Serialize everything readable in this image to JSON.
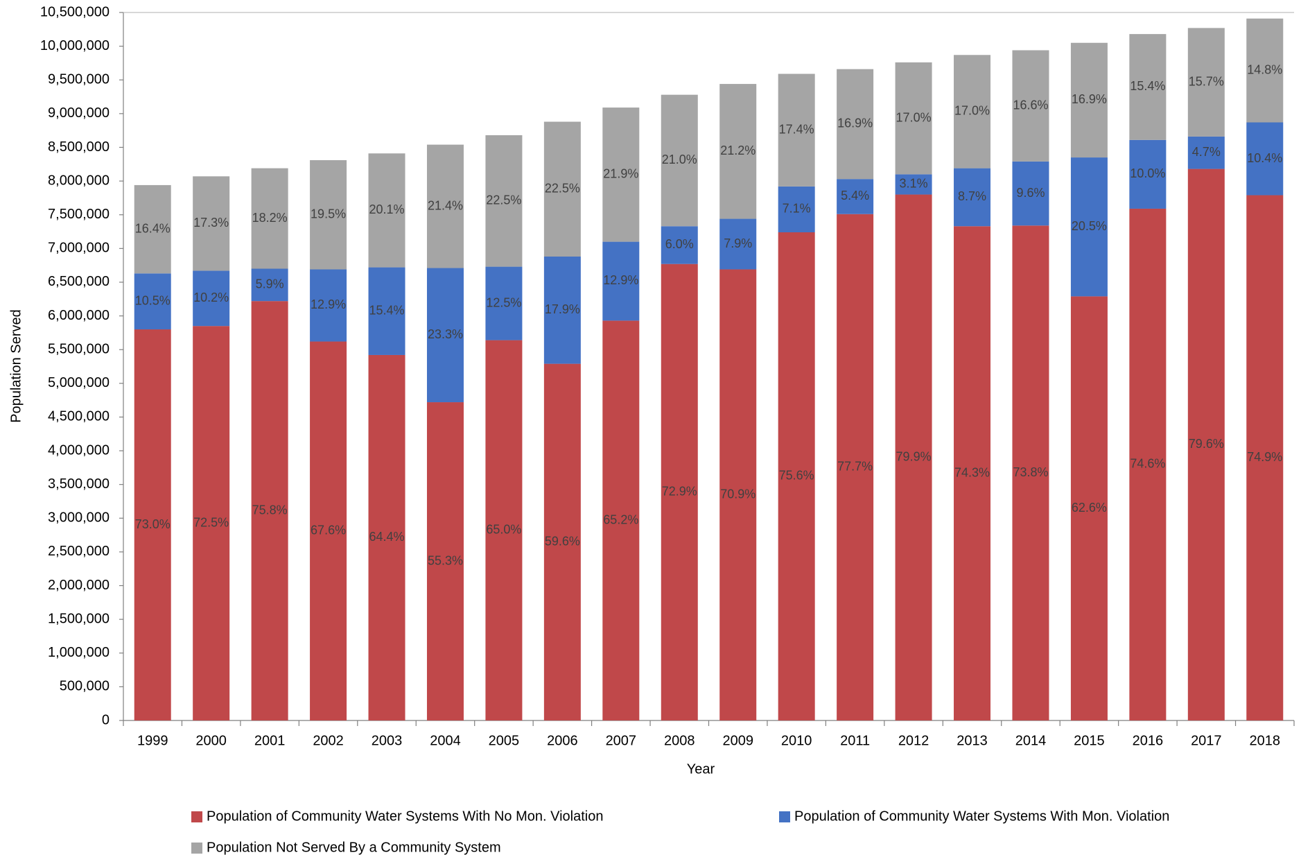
{
  "chart_data": {
    "type": "stacked_bar",
    "x_label": "Year",
    "y_label": "Population Served",
    "categories": [
      "1999",
      "2000",
      "2001",
      "2002",
      "2003",
      "2004",
      "2005",
      "2006",
      "2007",
      "2008",
      "2009",
      "2010",
      "2011",
      "2012",
      "2013",
      "2014",
      "2015",
      "2016",
      "2017",
      "2018"
    ],
    "series": [
      {
        "name": "Population of Community Water Systems With No Mon. Violation",
        "color": "#c0484a",
        "values": [
          5800000,
          5850000,
          6220000,
          5620000,
          5420000,
          4720000,
          5640000,
          5290000,
          5930000,
          6770000,
          6690000,
          7240000,
          7510000,
          7800000,
          7330000,
          7340000,
          6290000,
          7590000,
          8180000,
          7790000
        ],
        "percent_labels": [
          "73.0%",
          "72.5%",
          "75.8%",
          "67.6%",
          "64.4%",
          "55.3%",
          "65.0%",
          "59.6%",
          "65.2%",
          "72.9%",
          "70.9%",
          "75.6%",
          "77.7%",
          "79.9%",
          "74.3%",
          "73.8%",
          "62.6%",
          "74.6%",
          "79.6%",
          "74.9%"
        ]
      },
      {
        "name": "Population of Community Water Systems With Mon. Violation",
        "color": "#4472c4",
        "values": [
          830000,
          820000,
          480000,
          1070000,
          1300000,
          1990000,
          1090000,
          1590000,
          1170000,
          560000,
          750000,
          680000,
          520000,
          300000,
          860000,
          950000,
          2060000,
          1020000,
          480000,
          1080000
        ],
        "percent_labels": [
          "10.5%",
          "10.2%",
          "5.9%",
          "12.9%",
          "15.4%",
          "23.3%",
          "12.5%",
          "17.9%",
          "12.9%",
          "6.0%",
          "7.9%",
          "7.1%",
          "5.4%",
          "3.1%",
          "8.7%",
          "9.6%",
          "20.5%",
          "10.0%",
          "4.7%",
          "10.4%"
        ]
      },
      {
        "name": "Population Not Served By a Community System",
        "color": "#a5a5a5",
        "values": [
          1310000,
          1400000,
          1490000,
          1620000,
          1690000,
          1830000,
          1950000,
          2000000,
          1990000,
          1950000,
          2000000,
          1670000,
          1630000,
          1660000,
          1680000,
          1650000,
          1700000,
          1570000,
          1610000,
          1540000
        ],
        "percent_labels": [
          "16.4%",
          "17.3%",
          "18.2%",
          "19.5%",
          "20.1%",
          "21.4%",
          "22.5%",
          "22.5%",
          "21.9%",
          "21.0%",
          "21.2%",
          "17.4%",
          "16.9%",
          "17.0%",
          "17.0%",
          "16.6%",
          "16.9%",
          "15.4%",
          "15.7%",
          "14.8%"
        ]
      }
    ],
    "ylim": [
      0,
      10500000
    ],
    "yticks": [
      0,
      {
        "value": 500000,
        "label": "500,000"
      },
      {
        "value": 1000000,
        "label": "1,000,000"
      },
      {
        "value": 1500000,
        "label": "1,500,000"
      },
      {
        "value": 2000000,
        "label": "2,000,000"
      },
      {
        "value": 2500000,
        "label": "2,500,000"
      },
      {
        "value": 3000000,
        "label": "3,000,000"
      },
      {
        "value": 3500000,
        "label": "3,500,000"
      },
      {
        "value": 4000000,
        "label": "4,000,000"
      },
      {
        "value": 4500000,
        "label": "4,500,000"
      },
      {
        "value": 5000000,
        "label": "5,000,000"
      },
      {
        "value": 5500000,
        "label": "5,500,000"
      },
      {
        "value": 6000000,
        "label": "6,000,000"
      },
      {
        "value": 6500000,
        "label": "6,500,000"
      },
      {
        "value": 7000000,
        "label": "7,000,000"
      },
      {
        "value": 7500000,
        "label": "7,500,000"
      },
      {
        "value": 8000000,
        "label": "8,000,000"
      },
      {
        "value": 8500000,
        "label": "8,500,000"
      },
      {
        "value": 9000000,
        "label": "9,000,000"
      },
      {
        "value": 9500000,
        "label": "9,500,000"
      },
      {
        "value": 10000000,
        "label": "10,000,000"
      },
      {
        "value": 10500000,
        "label": "10,500,000"
      }
    ],
    "grid": false,
    "legend": "bottom"
  }
}
